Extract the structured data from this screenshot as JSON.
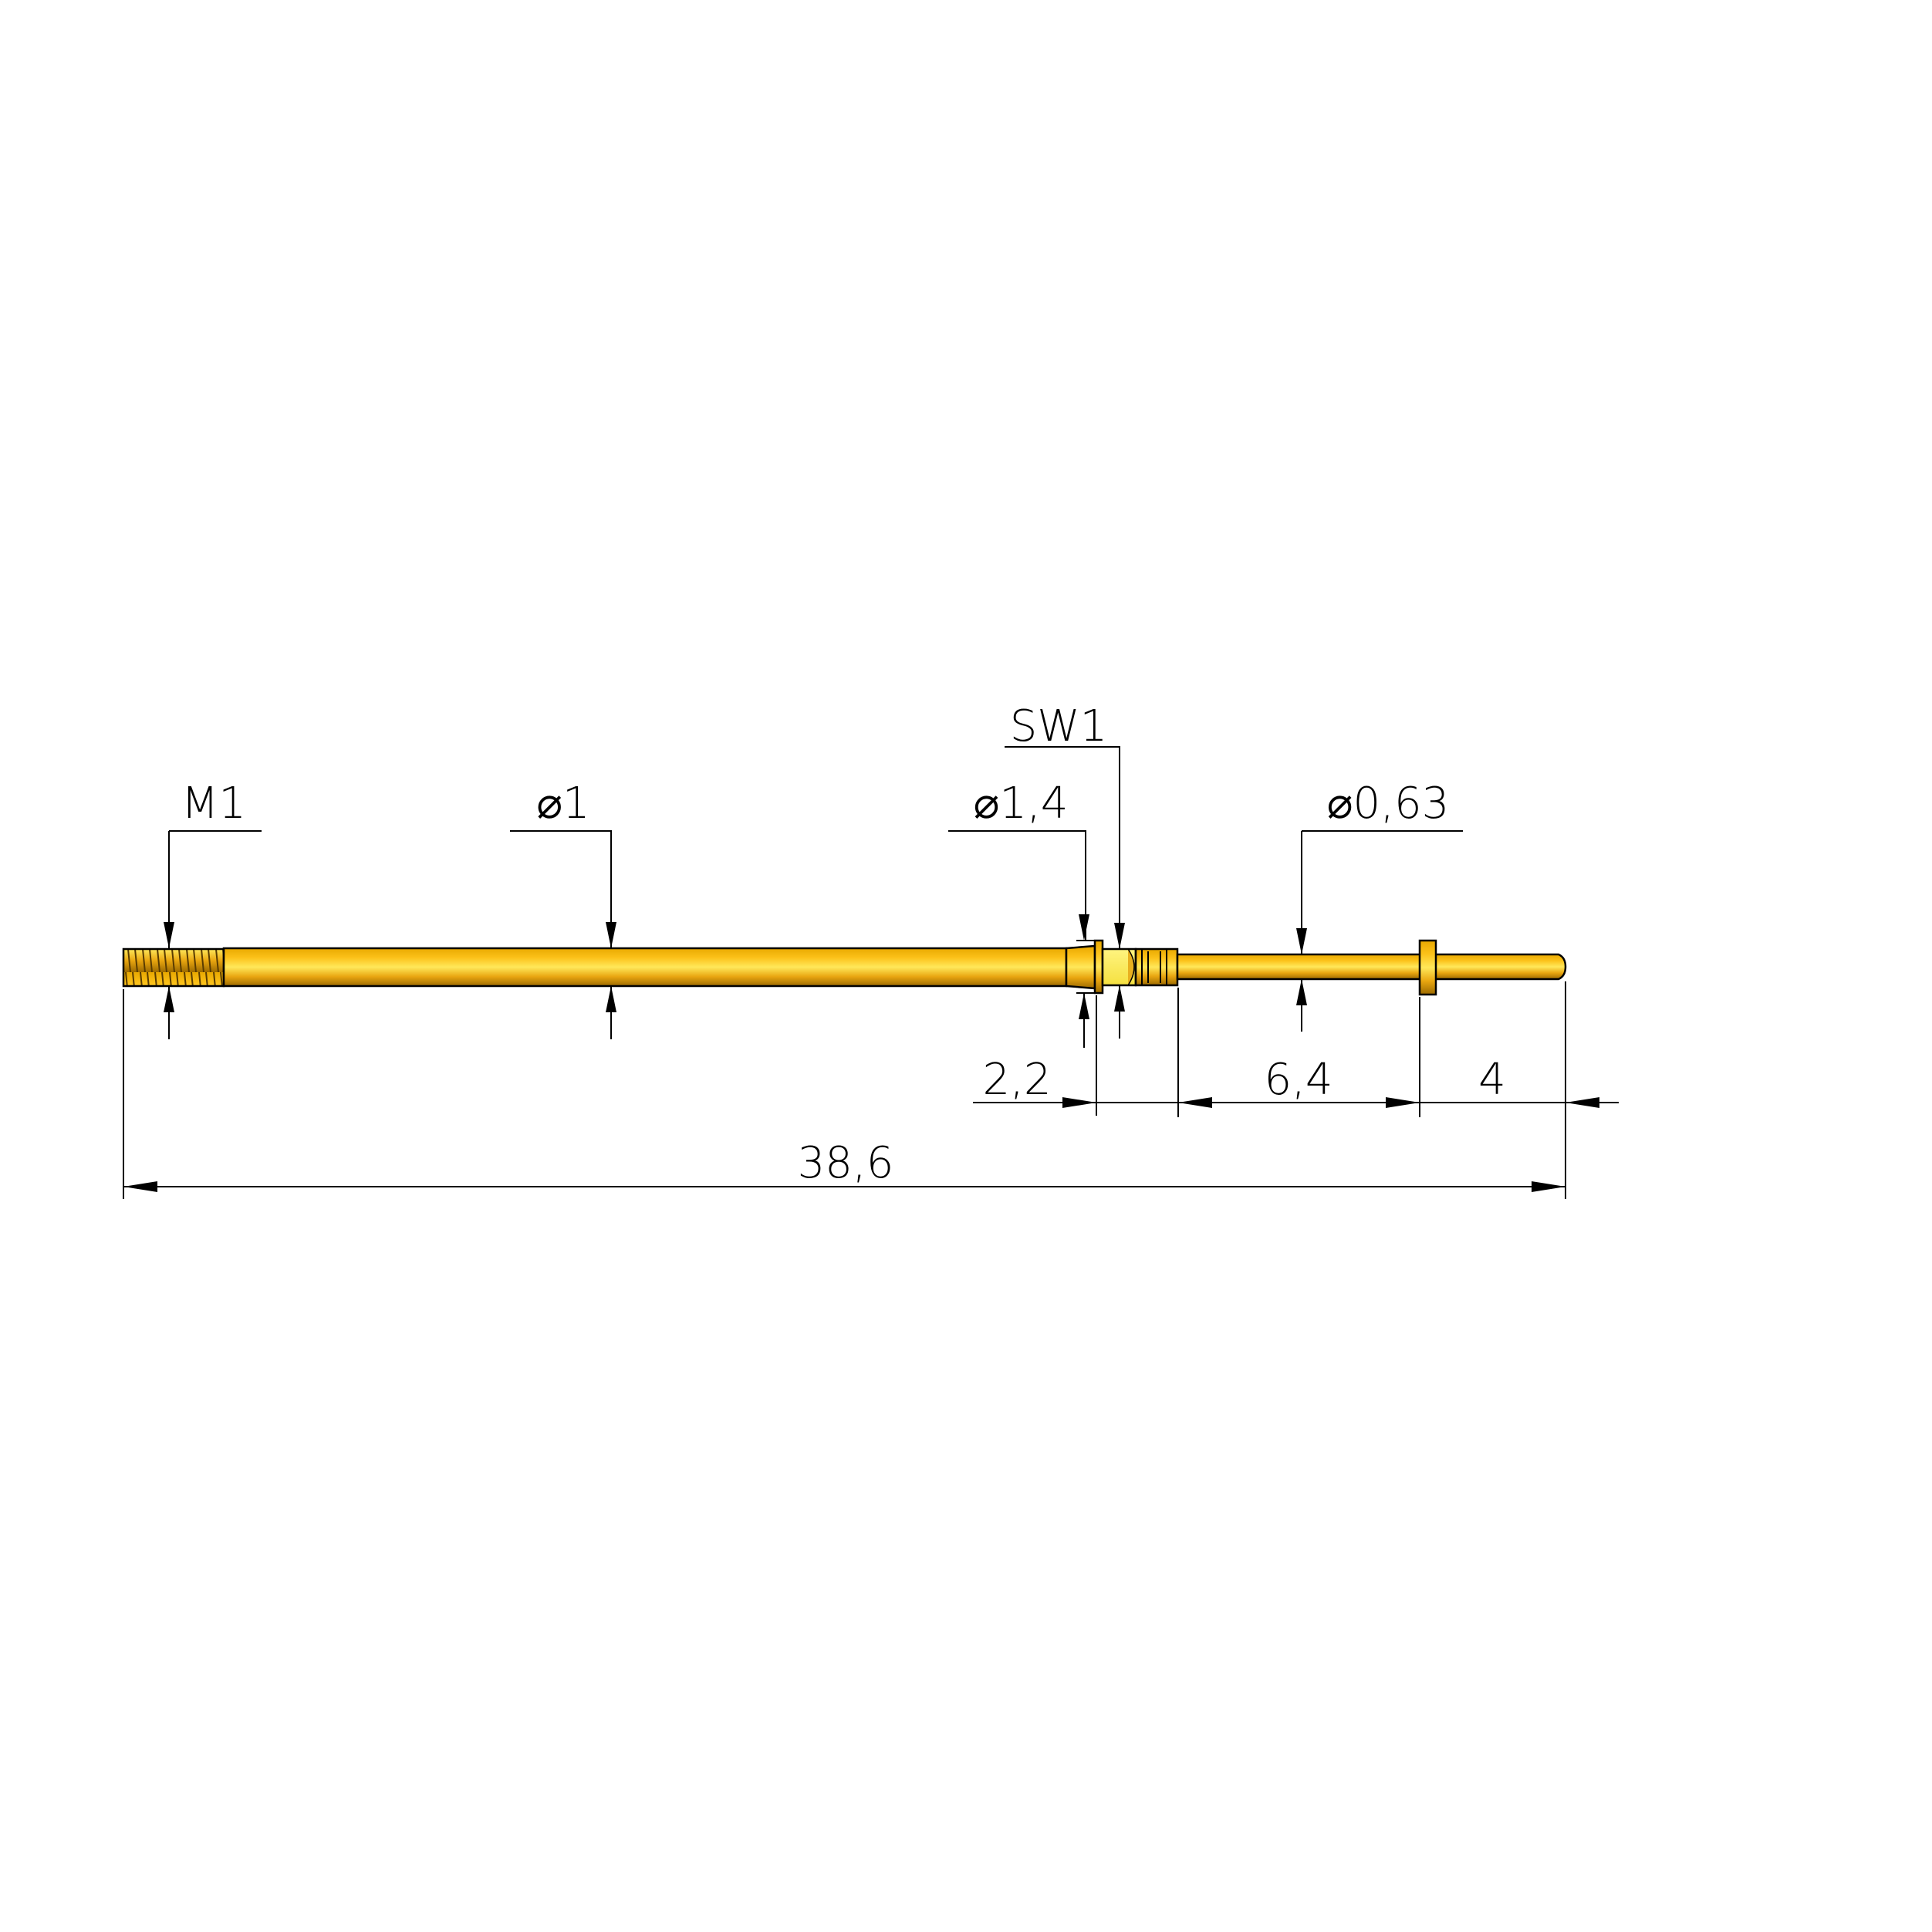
{
  "drawing": {
    "colors": {
      "gold": "#f7bb10",
      "gold_light": "#ffe85a",
      "gold_dark": "#b57f00",
      "hex_face": "#fff260",
      "line": "#000000"
    },
    "labels": {
      "thread": "M1",
      "shaft_diameter": "⌀1",
      "collar_diameter": "⌀1,4",
      "wrench_size": "SW1",
      "tip_diameter": "⌀0,63"
    },
    "dimensions": {
      "collar_to_grooves": "2,2",
      "grooves_to_flange": "6,4",
      "flange_to_tip": "4",
      "overall_length": "38,6"
    }
  }
}
